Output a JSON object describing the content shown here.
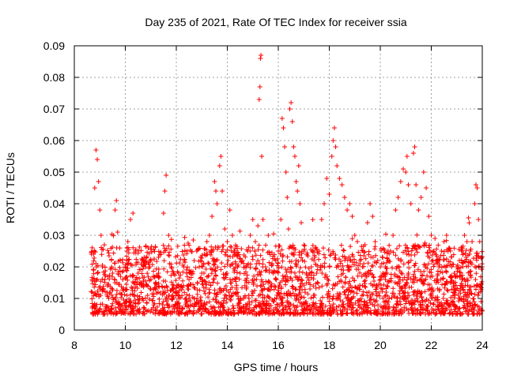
{
  "chart_data": {
    "type": "scatter",
    "title": "Day 235 of 2021, Rate Of TEC Index for receiver ssia",
    "xlabel": "GPS time / hours",
    "ylabel": "ROTI / TECUs",
    "xlim": [
      8,
      24
    ],
    "ylim": [
      0,
      0.09
    ],
    "x_ticks": [
      "8",
      "10",
      "12",
      "14",
      "16",
      "18",
      "20",
      "22",
      "24"
    ],
    "y_ticks": [
      "0",
      "0.01",
      "0.02",
      "0.03",
      "0.04",
      "0.05",
      "0.06",
      "0.07",
      "0.08",
      "0.09"
    ],
    "grid": true,
    "marker": "+",
    "marker_color": "#ff0000",
    "series": [
      {
        "name": "ROTI",
        "points": [
          [
            8.7,
            0.012
          ],
          [
            8.75,
            0.024
          ],
          [
            8.8,
            0.045
          ],
          [
            8.85,
            0.057
          ],
          [
            8.9,
            0.054
          ],
          [
            8.95,
            0.047
          ],
          [
            9.0,
            0.038
          ],
          [
            9.05,
            0.03
          ],
          [
            9.1,
            0.02
          ],
          [
            9.2,
            0.016
          ],
          [
            9.3,
            0.014
          ],
          [
            9.4,
            0.012
          ],
          [
            9.5,
            0.018
          ],
          [
            9.6,
            0.038
          ],
          [
            9.65,
            0.041
          ],
          [
            9.7,
            0.031
          ],
          [
            9.8,
            0.022
          ],
          [
            9.9,
            0.016
          ],
          [
            10.0,
            0.02
          ],
          [
            10.1,
            0.028
          ],
          [
            10.2,
            0.035
          ],
          [
            10.3,
            0.037
          ],
          [
            10.4,
            0.025
          ],
          [
            10.5,
            0.018
          ],
          [
            10.6,
            0.015
          ],
          [
            10.7,
            0.014
          ],
          [
            10.8,
            0.02
          ],
          [
            10.9,
            0.026
          ],
          [
            11.0,
            0.022
          ],
          [
            11.1,
            0.017
          ],
          [
            11.2,
            0.015
          ],
          [
            11.3,
            0.018
          ],
          [
            11.4,
            0.024
          ],
          [
            11.5,
            0.037
          ],
          [
            11.55,
            0.044
          ],
          [
            11.6,
            0.049
          ],
          [
            11.7,
            0.03
          ],
          [
            11.8,
            0.02
          ],
          [
            11.9,
            0.014
          ],
          [
            12.0,
            0.012
          ],
          [
            12.1,
            0.01
          ],
          [
            12.2,
            0.014
          ],
          [
            12.3,
            0.02
          ],
          [
            12.4,
            0.018
          ],
          [
            12.5,
            0.016
          ],
          [
            12.6,
            0.018
          ],
          [
            12.7,
            0.022
          ],
          [
            12.8,
            0.025
          ],
          [
            12.9,
            0.02
          ],
          [
            13.0,
            0.018
          ],
          [
            13.1,
            0.024
          ],
          [
            13.2,
            0.028
          ],
          [
            13.3,
            0.03
          ],
          [
            13.4,
            0.036
          ],
          [
            13.5,
            0.047
          ],
          [
            13.55,
            0.044
          ],
          [
            13.6,
            0.04
          ],
          [
            13.7,
            0.052
          ],
          [
            13.75,
            0.055
          ],
          [
            13.8,
            0.044
          ],
          [
            13.9,
            0.032
          ],
          [
            14.0,
            0.028
          ],
          [
            14.1,
            0.038
          ],
          [
            14.2,
            0.03
          ],
          [
            14.3,
            0.024
          ],
          [
            14.4,
            0.02
          ],
          [
            14.5,
            0.018
          ],
          [
            14.6,
            0.022
          ],
          [
            14.7,
            0.02
          ],
          [
            14.8,
            0.025
          ],
          [
            14.9,
            0.03
          ],
          [
            15.0,
            0.035
          ],
          [
            15.1,
            0.028
          ],
          [
            15.2,
            0.033
          ],
          [
            15.25,
            0.073
          ],
          [
            15.28,
            0.077
          ],
          [
            15.3,
            0.086
          ],
          [
            15.32,
            0.087
          ],
          [
            15.35,
            0.055
          ],
          [
            15.4,
            0.035
          ],
          [
            15.5,
            0.02
          ],
          [
            15.6,
            0.015
          ],
          [
            15.7,
            0.014
          ],
          [
            15.8,
            0.018
          ],
          [
            15.9,
            0.022
          ],
          [
            16.0,
            0.025
          ],
          [
            16.1,
            0.035
          ],
          [
            16.15,
            0.067
          ],
          [
            16.2,
            0.064
          ],
          [
            16.25,
            0.058
          ],
          [
            16.3,
            0.05
          ],
          [
            16.35,
            0.042
          ],
          [
            16.4,
            0.032
          ],
          [
            16.45,
            0.07
          ],
          [
            16.5,
            0.072
          ],
          [
            16.55,
            0.066
          ],
          [
            16.6,
            0.058
          ],
          [
            16.65,
            0.055
          ],
          [
            16.7,
            0.047
          ],
          [
            16.75,
            0.044
          ],
          [
            16.8,
            0.052
          ],
          [
            16.85,
            0.04
          ],
          [
            16.9,
            0.034
          ],
          [
            17.0,
            0.025
          ],
          [
            17.1,
            0.018
          ],
          [
            17.2,
            0.015
          ],
          [
            17.3,
            0.02
          ],
          [
            17.4,
            0.022
          ],
          [
            17.5,
            0.018
          ],
          [
            17.6,
            0.025
          ],
          [
            17.7,
            0.035
          ],
          [
            17.8,
            0.04
          ],
          [
            17.9,
            0.048
          ],
          [
            18.0,
            0.043
          ],
          [
            18.1,
            0.055
          ],
          [
            18.15,
            0.06
          ],
          [
            18.2,
            0.064
          ],
          [
            18.25,
            0.058
          ],
          [
            18.3,
            0.052
          ],
          [
            18.4,
            0.048
          ],
          [
            18.5,
            0.046
          ],
          [
            18.6,
            0.042
          ],
          [
            18.7,
            0.038
          ],
          [
            18.8,
            0.04
          ],
          [
            18.9,
            0.036
          ],
          [
            19.0,
            0.03
          ],
          [
            19.1,
            0.028
          ],
          [
            19.2,
            0.022
          ],
          [
            19.3,
            0.02
          ],
          [
            19.4,
            0.027
          ],
          [
            19.5,
            0.034
          ],
          [
            19.6,
            0.04
          ],
          [
            19.7,
            0.036
          ],
          [
            19.8,
            0.028
          ],
          [
            19.9,
            0.022
          ],
          [
            20.0,
            0.02
          ],
          [
            20.1,
            0.018
          ],
          [
            20.2,
            0.02
          ],
          [
            20.3,
            0.022
          ],
          [
            20.4,
            0.025
          ],
          [
            20.5,
            0.03
          ],
          [
            20.6,
            0.038
          ],
          [
            20.7,
            0.042
          ],
          [
            20.8,
            0.047
          ],
          [
            20.9,
            0.051
          ],
          [
            21.0,
            0.05
          ],
          [
            21.05,
            0.055
          ],
          [
            21.1,
            0.046
          ],
          [
            21.2,
            0.04
          ],
          [
            21.3,
            0.056
          ],
          [
            21.35,
            0.058
          ],
          [
            21.4,
            0.046
          ],
          [
            21.5,
            0.038
          ],
          [
            21.6,
            0.042
          ],
          [
            21.7,
            0.05
          ],
          [
            21.8,
            0.045
          ],
          [
            21.9,
            0.036
          ],
          [
            22.0,
            0.03
          ],
          [
            22.1,
            0.025
          ],
          [
            22.2,
            0.022
          ],
          [
            22.3,
            0.02
          ],
          [
            22.4,
            0.025
          ],
          [
            22.5,
            0.028
          ],
          [
            22.6,
            0.03
          ],
          [
            22.7,
            0.026
          ],
          [
            22.8,
            0.02
          ],
          [
            22.9,
            0.018
          ],
          [
            23.0,
            0.02
          ],
          [
            23.1,
            0.022
          ],
          [
            23.2,
            0.025
          ],
          [
            23.3,
            0.03
          ],
          [
            23.4,
            0.028
          ],
          [
            23.5,
            0.024
          ],
          [
            23.6,
            0.028
          ],
          [
            23.7,
            0.04
          ],
          [
            23.75,
            0.046
          ],
          [
            23.8,
            0.045
          ],
          [
            23.85,
            0.035
          ],
          [
            23.9,
            0.028
          ],
          [
            24.0,
            0.02
          ]
        ],
        "baseline_note": "dense band of points between 0.003 and 0.025 TECUs across 8.6–24 h"
      }
    ]
  }
}
